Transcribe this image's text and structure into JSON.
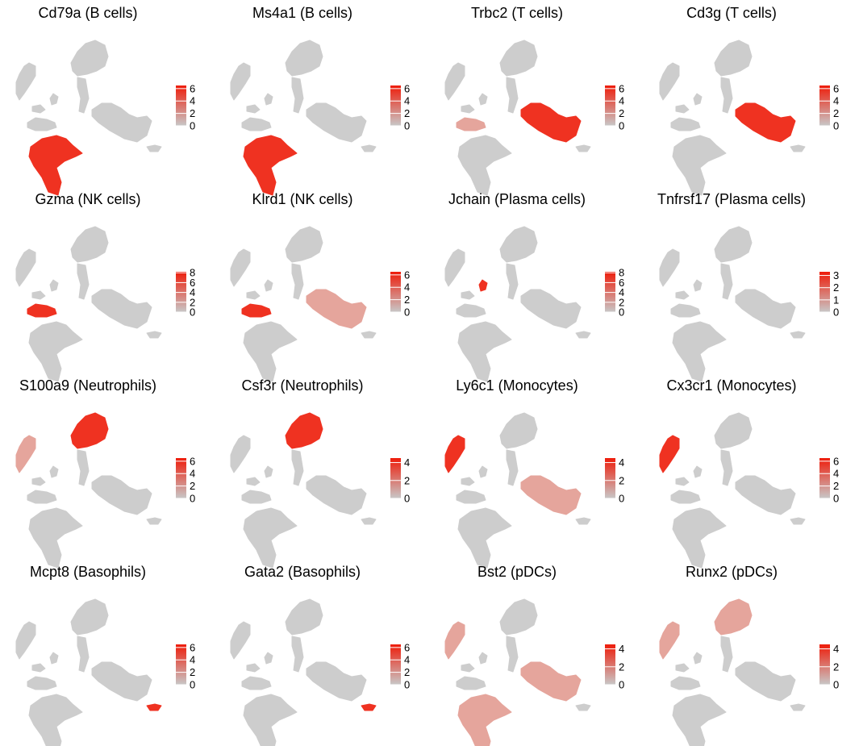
{
  "chart_data": [
    {
      "type": "scatter",
      "title": "Cd79a (B cells)",
      "gene": "Cd79a",
      "cell_type": "B cells",
      "legend_ticks": [
        6,
        4,
        2,
        0
      ],
      "legend_max": 6.5,
      "highlight": [
        "B"
      ]
    },
    {
      "type": "scatter",
      "title": "Ms4a1 (B cells)",
      "gene": "Ms4a1",
      "cell_type": "B cells",
      "legend_ticks": [
        6,
        4,
        2,
        0
      ],
      "legend_max": 6.5,
      "highlight": [
        "B"
      ]
    },
    {
      "type": "scatter",
      "title": "Trbc2 (T cells)",
      "gene": "Trbc2",
      "cell_type": "T cells",
      "legend_ticks": [
        6,
        4,
        2,
        0
      ],
      "legend_max": 6.5,
      "highlight": [
        "T",
        "NKfaint"
      ]
    },
    {
      "type": "scatter",
      "title": "Cd3g (T cells)",
      "gene": "Cd3g",
      "cell_type": "T cells",
      "legend_ticks": [
        6,
        4,
        2,
        0
      ],
      "legend_max": 6.5,
      "highlight": [
        "T"
      ]
    },
    {
      "type": "scatter",
      "title": "Gzma (NK cells)",
      "gene": "Gzma",
      "cell_type": "NK cells",
      "legend_ticks": [
        8,
        6,
        4,
        2,
        0
      ],
      "legend_max": 8.2,
      "highlight": [
        "NK"
      ]
    },
    {
      "type": "scatter",
      "title": "Klrd1 (NK cells)",
      "gene": "Klrd1",
      "cell_type": "NK cells",
      "legend_ticks": [
        6,
        4,
        2,
        0
      ],
      "legend_max": 6.5,
      "highlight": [
        "NK",
        "Tfaint"
      ]
    },
    {
      "type": "scatter",
      "title": "Jchain (Plasma cells)",
      "gene": "Jchain",
      "cell_type": "Plasma cells",
      "legend_ticks": [
        8,
        6,
        4,
        2,
        0
      ],
      "legend_max": 8.2,
      "highlight": [
        "Plasma"
      ]
    },
    {
      "type": "scatter",
      "title": "Tnfrsf17 (Plasma cells)",
      "gene": "Tnfrsf17",
      "cell_type": "Plasma cells",
      "legend_ticks": [
        3,
        2,
        1,
        0
      ],
      "legend_max": 3.3,
      "highlight": []
    },
    {
      "type": "scatter",
      "title": "S100a9 (Neutrophils)",
      "gene": "S100a9",
      "cell_type": "Neutrophils",
      "legend_ticks": [
        6,
        4,
        2,
        0
      ],
      "legend_max": 6.5,
      "highlight": [
        "Neut",
        "Monofaint"
      ]
    },
    {
      "type": "scatter",
      "title": "Csf3r (Neutrophils)",
      "gene": "Csf3r",
      "cell_type": "Neutrophils",
      "legend_ticks": [
        4,
        2,
        0
      ],
      "legend_max": 4.5,
      "highlight": [
        "Neut"
      ]
    },
    {
      "type": "scatter",
      "title": "Ly6c1 (Monocytes)",
      "gene": "Ly6c1",
      "cell_type": "Monocytes",
      "legend_ticks": [
        4,
        2,
        0
      ],
      "legend_max": 4.5,
      "highlight": [
        "Mono",
        "Tfaint"
      ]
    },
    {
      "type": "scatter",
      "title": "Cx3cr1 (Monocytes)",
      "gene": "Cx3cr1",
      "cell_type": "Monocytes",
      "legend_ticks": [
        6,
        4,
        2,
        0
      ],
      "legend_max": 6.5,
      "highlight": [
        "Mono"
      ]
    },
    {
      "type": "scatter",
      "title": "Mcpt8 (Basophils)",
      "gene": "Mcpt8",
      "cell_type": "Basophils",
      "legend_ticks": [
        6,
        4,
        2,
        0
      ],
      "legend_max": 6.5,
      "highlight": [
        "Baso"
      ]
    },
    {
      "type": "scatter",
      "title": "Gata2 (Basophils)",
      "gene": "Gata2",
      "cell_type": "Basophils",
      "legend_ticks": [
        6,
        4,
        2,
        0
      ],
      "legend_max": 6.5,
      "highlight": [
        "Baso"
      ]
    },
    {
      "type": "scatter",
      "title": "Bst2 (pDCs)",
      "gene": "Bst2",
      "cell_type": "pDCs",
      "legend_ticks": [
        4,
        2,
        0
      ],
      "legend_max": 4.5,
      "highlight": [
        "Monofaint",
        "Tfaint",
        "Bfaint"
      ]
    },
    {
      "type": "scatter",
      "title": "Runx2 (pDCs)",
      "gene": "Runx2",
      "cell_type": "pDCs",
      "legend_ticks": [
        4,
        2,
        0
      ],
      "legend_max": 4.5,
      "highlight": [
        "Monofaint",
        "Neutfaint"
      ]
    }
  ],
  "colors": {
    "low": "#c8c8c8",
    "high": "#ee1c0a",
    "text": "#000000"
  }
}
